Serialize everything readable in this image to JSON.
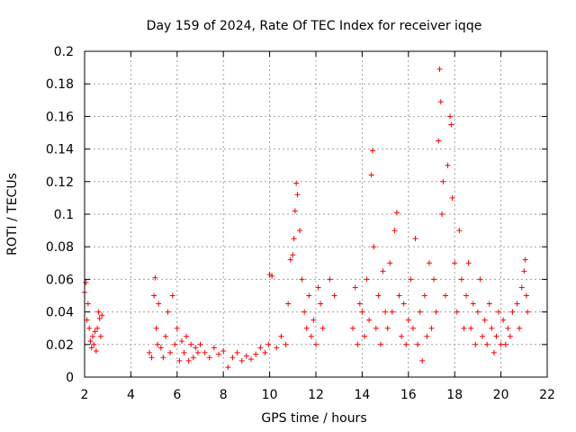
{
  "chart_data": {
    "type": "scatter",
    "title": "Day 159 of 2024, Rate Of TEC Index for receiver iqqe",
    "xlabel": "GPS time / hours",
    "ylabel": "ROTI / TECUs",
    "xlim": [
      2,
      22
    ],
    "ylim": [
      0,
      0.2
    ],
    "xticks": [
      2,
      4,
      6,
      8,
      10,
      12,
      14,
      16,
      18,
      20,
      22
    ],
    "xtick_labels": [
      "2",
      "4",
      "6",
      "8",
      "10",
      "12",
      "14",
      "16",
      "18",
      "20",
      "22"
    ],
    "yticks": [
      0,
      0.02,
      0.04,
      0.06,
      0.08,
      0.1,
      0.12,
      0.14,
      0.16,
      0.18,
      0.2
    ],
    "ytick_labels": [
      "0",
      "0.02",
      "0.04",
      "0.06",
      "0.08",
      "0.1",
      "0.12",
      "0.14",
      "0.16",
      "0.18",
      "0.2"
    ],
    "grid": true,
    "marker": "+",
    "color": "#ff0000",
    "series": [
      {
        "name": "ROTI",
        "x": [
          2.0,
          2.05,
          2.1,
          2.15,
          2.2,
          2.25,
          2.3,
          2.35,
          2.4,
          2.45,
          2.5,
          2.55,
          2.6,
          2.65,
          2.7,
          2.75,
          4.8,
          4.9,
          5.0,
          5.05,
          5.1,
          5.15,
          5.2,
          5.3,
          5.4,
          5.5,
          5.6,
          5.7,
          5.8,
          5.9,
          6.0,
          6.1,
          6.2,
          6.3,
          6.4,
          6.5,
          6.6,
          6.7,
          6.8,
          6.9,
          7.0,
          7.2,
          7.4,
          7.6,
          7.8,
          8.0,
          8.2,
          8.4,
          8.6,
          8.8,
          9.0,
          9.2,
          9.4,
          9.6,
          9.8,
          9.95,
          10.0,
          10.1,
          10.3,
          10.5,
          10.7,
          10.8,
          10.9,
          11.0,
          11.05,
          11.1,
          11.15,
          11.2,
          11.3,
          11.4,
          11.5,
          11.6,
          11.7,
          11.8,
          11.9,
          12.0,
          12.1,
          12.2,
          12.3,
          12.6,
          12.8,
          13.6,
          13.7,
          13.8,
          13.9,
          14.0,
          14.1,
          14.2,
          14.3,
          14.4,
          14.45,
          14.5,
          14.6,
          14.7,
          14.8,
          14.9,
          15.0,
          15.1,
          15.2,
          15.3,
          15.4,
          15.5,
          15.6,
          15.7,
          15.8,
          15.9,
          16.0,
          16.1,
          16.2,
          16.3,
          16.4,
          16.5,
          16.6,
          16.7,
          16.8,
          16.9,
          17.0,
          17.1,
          17.2,
          17.3,
          17.35,
          17.4,
          17.45,
          17.5,
          17.6,
          17.7,
          17.8,
          17.85,
          17.9,
          18.0,
          18.1,
          18.2,
          18.3,
          18.4,
          18.5,
          18.6,
          18.7,
          18.8,
          18.9,
          19.0,
          19.1,
          19.2,
          19.3,
          19.4,
          19.5,
          19.6,
          19.7,
          19.8,
          19.9,
          20.0,
          20.1,
          20.2,
          20.3,
          20.4,
          20.5,
          20.7,
          20.8,
          20.9,
          21.0,
          21.05,
          21.1,
          21.15
        ],
        "y": [
          0.052,
          0.058,
          0.035,
          0.045,
          0.03,
          0.022,
          0.018,
          0.025,
          0.02,
          0.028,
          0.016,
          0.03,
          0.04,
          0.036,
          0.025,
          0.038,
          0.015,
          0.012,
          0.05,
          0.061,
          0.03,
          0.02,
          0.045,
          0.018,
          0.012,
          0.025,
          0.04,
          0.015,
          0.05,
          0.02,
          0.03,
          0.01,
          0.022,
          0.015,
          0.025,
          0.01,
          0.02,
          0.012,
          0.018,
          0.015,
          0.02,
          0.015,
          0.012,
          0.018,
          0.014,
          0.016,
          0.006,
          0.012,
          0.015,
          0.01,
          0.013,
          0.011,
          0.014,
          0.018,
          0.015,
          0.02,
          0.063,
          0.062,
          0.018,
          0.025,
          0.02,
          0.045,
          0.072,
          0.075,
          0.085,
          0.102,
          0.119,
          0.112,
          0.09,
          0.06,
          0.04,
          0.03,
          0.05,
          0.025,
          0.035,
          0.02,
          0.055,
          0.045,
          0.03,
          0.06,
          0.05,
          0.03,
          0.055,
          0.02,
          0.045,
          0.04,
          0.025,
          0.06,
          0.035,
          0.124,
          0.139,
          0.08,
          0.03,
          0.05,
          0.02,
          0.065,
          0.04,
          0.03,
          0.07,
          0.04,
          0.09,
          0.101,
          0.05,
          0.025,
          0.045,
          0.02,
          0.035,
          0.06,
          0.03,
          0.085,
          0.02,
          0.04,
          0.01,
          0.05,
          0.025,
          0.07,
          0.03,
          0.06,
          0.04,
          0.145,
          0.189,
          0.169,
          0.1,
          0.12,
          0.05,
          0.13,
          0.16,
          0.155,
          0.11,
          0.07,
          0.04,
          0.09,
          0.06,
          0.03,
          0.05,
          0.07,
          0.03,
          0.045,
          0.02,
          0.04,
          0.06,
          0.025,
          0.035,
          0.02,
          0.045,
          0.03,
          0.015,
          0.025,
          0.04,
          0.02,
          0.035,
          0.02,
          0.03,
          0.025,
          0.04,
          0.045,
          0.03,
          0.055,
          0.065,
          0.072,
          0.05,
          0.04
        ]
      }
    ]
  }
}
